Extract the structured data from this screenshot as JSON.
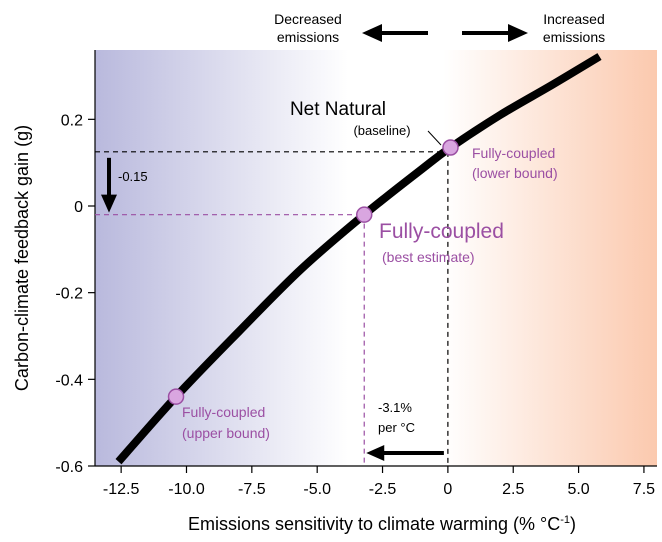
{
  "header": {
    "decreased_line1": "Decreased",
    "decreased_line2": "emissions",
    "increased_line1": "Increased",
    "increased_line2": "emissions"
  },
  "colors": {
    "left_gradient": "#b9b9dd",
    "right_gradient": "#fbc9ae",
    "curve": "#000000",
    "purple": "#9b4fa3",
    "marker_fill": "#d9a6e0"
  },
  "chart_data": {
    "type": "line",
    "xlabel": "Emissions sensitivity to climate warming (% °C",
    "xlabel_sup": "-1",
    "xlabel_end": ")",
    "ylabel": "Carbon-climate feedback gain (g)",
    "xlim": [
      -13.5,
      8.0
    ],
    "ylim": [
      -0.6,
      0.36
    ],
    "x_ticks": [
      -12.5,
      -10.0,
      -7.5,
      -5.0,
      -2.5,
      0,
      2.5,
      5.0,
      7.5
    ],
    "x_tick_labels": [
      "-12.5",
      "-10.0",
      "-7.5",
      "-5.0",
      "-2.5",
      "0",
      "2.5",
      "5.0",
      "7.5"
    ],
    "y_ticks": [
      -0.6,
      -0.4,
      -0.2,
      0,
      0.2
    ],
    "y_tick_labels": [
      "-0.6",
      "-0.4",
      "-0.2",
      "0",
      "0.2"
    ],
    "curve": {
      "x": [
        -12.6,
        -10.4,
        -8.0,
        -5.6,
        -3.2,
        -1.0,
        0.1,
        2.0,
        4.0,
        5.8
      ],
      "y": [
        -0.59,
        -0.44,
        -0.29,
        -0.145,
        -0.02,
        0.085,
        0.135,
        0.21,
        0.28,
        0.345
      ]
    },
    "points": [
      {
        "key": "lower_bound",
        "x": 0.1,
        "y": 0.135,
        "label1": "Fully-coupled",
        "label2": "(lower bound)"
      },
      {
        "key": "best_estimate",
        "x": -3.2,
        "y": -0.02,
        "label1": "Fully-coupled",
        "label2": "(best estimate)"
      },
      {
        "key": "upper_bound",
        "x": -10.4,
        "y": -0.44,
        "label1": "Fully-coupled",
        "label2": "(upper bound)"
      }
    ],
    "baseline": {
      "x": 0,
      "y": 0.125,
      "label1": "Net Natural",
      "label2": "(baseline)"
    },
    "annotations": {
      "gain_change": "-0.15",
      "sensitivity_change_line1": "-3.1%",
      "sensitivity_change_line2": "per  °C"
    }
  }
}
